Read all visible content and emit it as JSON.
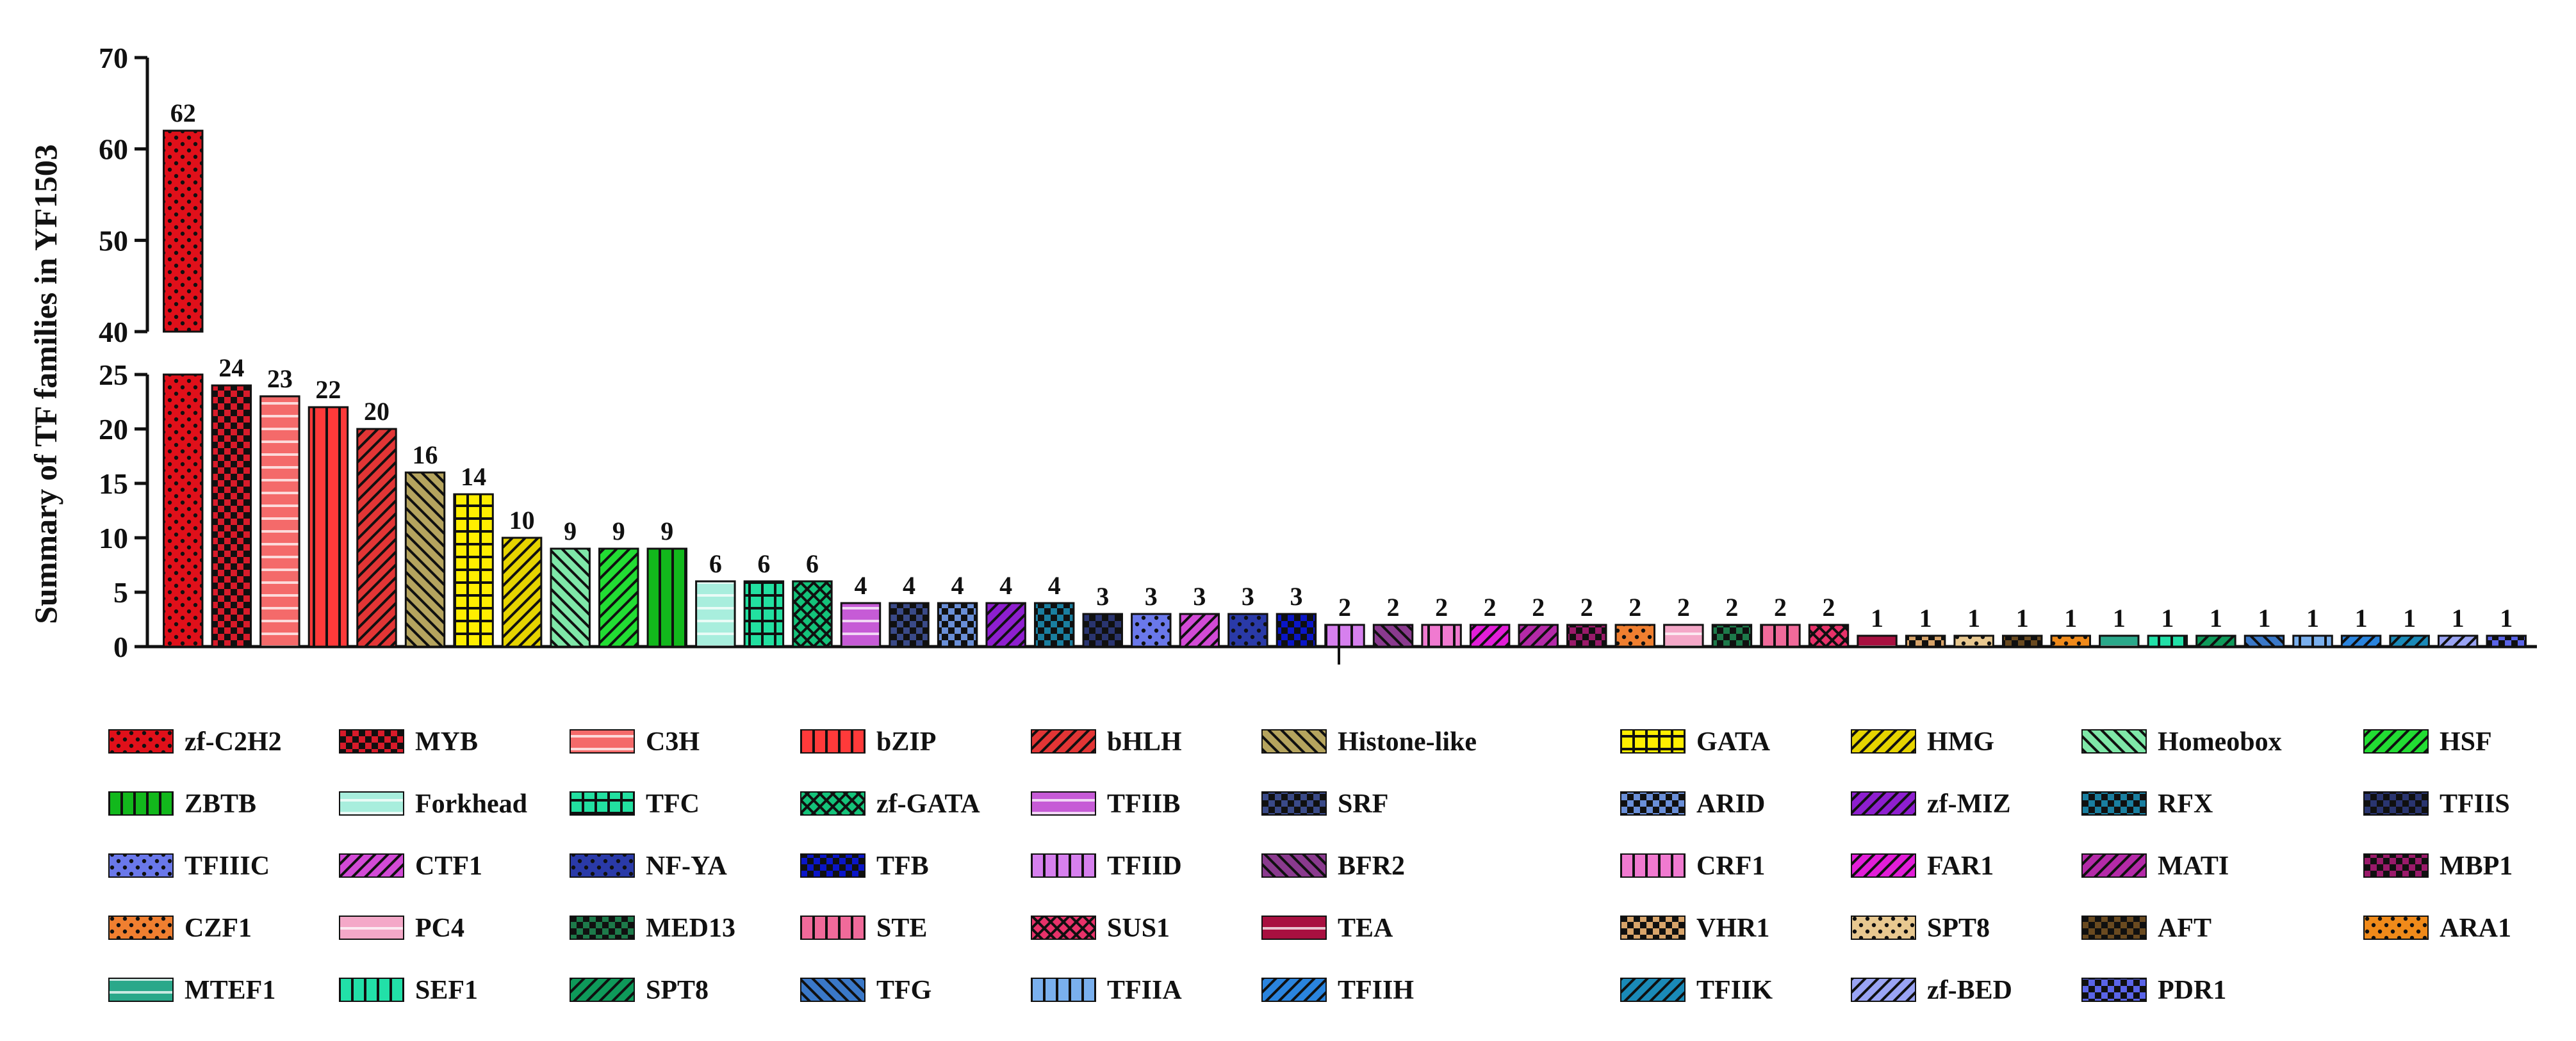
{
  "chart_data": {
    "type": "bar",
    "title": "",
    "xlabel": "",
    "ylabel": "Summary of TF families in YF1503",
    "ylim": [
      0,
      70
    ],
    "y_axis_break": [
      25,
      40
    ],
    "lower_ticks": [
      0,
      5,
      10,
      15,
      20,
      25
    ],
    "upper_ticks": [
      40,
      50,
      60,
      70
    ],
    "legend_placement": "bottom",
    "grid": false,
    "categories": [
      "zf-C2H2",
      "MYB",
      "C3H",
      "bZIP",
      "bHLH",
      "Histone-like",
      "GATA",
      "HMG",
      "Homeobox",
      "HSF",
      "ZBTB",
      "Forkhead",
      "TFC",
      "zf-GATA",
      "TFIIB",
      "SRF",
      "ARID",
      "zf-MIZ",
      "RFX",
      "TFIIS",
      "TFIIIC",
      "CTF1",
      "NF-YA",
      "TFB",
      "TFIID",
      "BFR2",
      "CRF1",
      "FAR1",
      "MATI",
      "MBP1",
      "CZF1",
      "PC4",
      "MED13",
      "STE",
      "SUS1",
      "TEA",
      "VHR1",
      "SPT8",
      "AFT",
      "ARA1",
      "MTEF1",
      "SEF1",
      "SPT8",
      "TFG",
      "TFIIA",
      "TFIIH",
      "TFIIK",
      "zf-BED",
      "PDR1"
    ],
    "values": [
      62,
      24,
      23,
      22,
      20,
      16,
      14,
      10,
      9,
      9,
      9,
      6,
      6,
      6,
      4,
      4,
      4,
      4,
      4,
      3,
      3,
      3,
      3,
      3,
      2,
      2,
      2,
      2,
      2,
      2,
      2,
      2,
      2,
      2,
      2,
      1,
      1,
      1,
      1,
      1,
      1,
      1,
      1,
      1,
      1,
      1,
      1,
      1,
      1
    ],
    "data_labels": [
      "62",
      "24",
      "23",
      "22",
      "20",
      "16",
      "14",
      "10",
      "9",
      "9",
      "9",
      "6",
      "6",
      "6",
      "4",
      "4",
      "4",
      "4",
      "4",
      "3",
      "3",
      "3",
      "3",
      "3",
      "2",
      "2",
      "2",
      "2",
      "2",
      "2",
      "2",
      "2",
      "2",
      "2",
      "2",
      "1",
      "1",
      "1",
      "1",
      "1",
      "1",
      "1",
      "1",
      "1",
      "1",
      "1",
      "1",
      "1",
      "1"
    ],
    "legend_entries": [
      "zf-C2H2",
      "MYB",
      "C3H",
      "bZIP",
      "bHLH",
      "Histone-like",
      "GATA",
      "HMG",
      "Homeobox",
      "HSF",
      "ZBTB",
      "Forkhead",
      "TFC",
      "zf-GATA",
      "TFIIB",
      "SRF",
      "ARID",
      "zf-MIZ",
      "RFX",
      "TFIIS",
      "TFIIIC",
      "CTF1",
      "NF-YA",
      "TFB",
      "TFIID",
      "BFR2",
      "CRF1",
      "FAR1",
      "MATI",
      "MBP1",
      "CZF1",
      "PC4",
      "MED13",
      "STE",
      "SUS1",
      "TEA",
      "VHR1",
      "SPT8",
      "AFT",
      "ARA1",
      "MTEF1",
      "SEF1",
      "SPT8",
      "TFG",
      "TFIIA",
      "TFIIH",
      "TFIIK",
      "zf-BED",
      "PDR1"
    ],
    "colors": [
      "#e0101a",
      "#d81b2a",
      "#f46a6a",
      "#ff3a3a",
      "#e23535",
      "#b5a45e",
      "#ffee00",
      "#e6d400",
      "#7fe7a8",
      "#22dd33",
      "#12b81c",
      "#a8eedd",
      "#22e0a0",
      "#14c37a",
      "#c65bd6",
      "#3a4a88",
      "#6a8fd8",
      "#8e1fcf",
      "#1a7fa0",
      "#2a3570",
      "#6a78ea",
      "#d24ad6",
      "#2a3aa8",
      "#0a16c8",
      "#d680ee",
      "#8a3a8e",
      "#f07ad0",
      "#e21ed8",
      "#b42aa8",
      "#9a1a6a",
      "#f07f30",
      "#f4a8c8",
      "#1d7a4a",
      "#f06a9a",
      "#e8326a",
      "#a81040",
      "#d8a46a",
      "#e8c890",
      "#6a4a20",
      "#f08a1a",
      "#2aa88a",
      "#22e0a8",
      "#0e9a5a",
      "#3a78c8",
      "#7ab0ee",
      "#2a84de",
      "#1a8ab8",
      "#9aa4f4",
      "#5a64e8"
    ],
    "patterns": [
      "dots",
      "checker",
      "hlines",
      "vlines",
      "diag",
      "diag2",
      "cross",
      "diag",
      "diag2",
      "diag",
      "vlines",
      "hlines",
      "cross",
      "xcross",
      "hlines",
      "checker",
      "checker",
      "diag",
      "checker",
      "checker",
      "dots",
      "diag",
      "dots",
      "checker",
      "vlines",
      "diag2",
      "vlines",
      "diag",
      "diag",
      "checker",
      "dots",
      "hlines",
      "checker",
      "vlines",
      "xcross",
      "hlines",
      "checker",
      "dots",
      "checker",
      "dots",
      "hlines",
      "vlines",
      "diag",
      "diag2",
      "vlines",
      "diag",
      "diag",
      "diag",
      "checker"
    ]
  }
}
